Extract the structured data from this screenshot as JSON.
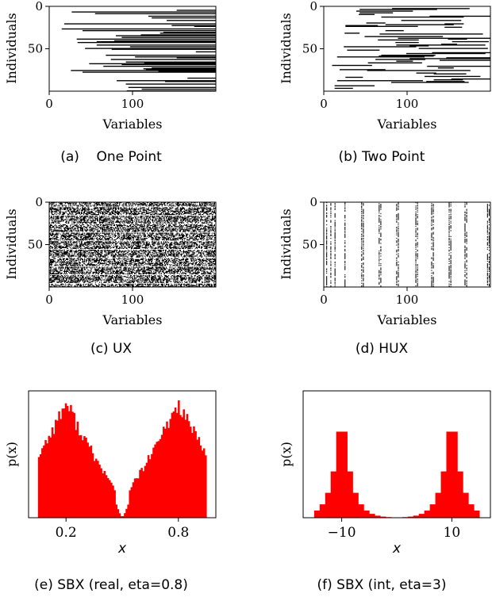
{
  "colors": {
    "ink": "#000000",
    "background": "#ffffff",
    "histogram": "#ff0000"
  },
  "chart_data": [
    {
      "id": "a",
      "type": "heatmap",
      "caption": "(a)    One Point",
      "xlabel": "Variables",
      "ylabel": "Individuals",
      "xlim": [
        0,
        200
      ],
      "ylim": [
        0,
        100
      ],
      "y_inverted": true,
      "xticks": [
        0,
        100
      ],
      "yticks": [
        0,
        50
      ],
      "xtick_labels": [
        "0",
        "100"
      ],
      "ytick_labels": [
        "0",
        "50"
      ],
      "pattern": "one-point",
      "grid": false
    },
    {
      "id": "b",
      "type": "heatmap",
      "caption": "(b) Two Point",
      "xlabel": "Variables",
      "ylabel": "Individuals",
      "xlim": [
        0,
        200
      ],
      "ylim": [
        0,
        100
      ],
      "y_inverted": true,
      "xticks": [
        0,
        100
      ],
      "yticks": [
        0,
        50
      ],
      "xtick_labels": [
        "0",
        "100"
      ],
      "ytick_labels": [
        "0",
        "50"
      ],
      "pattern": "two-point",
      "grid": false
    },
    {
      "id": "c",
      "type": "heatmap",
      "caption": "(c) UX",
      "xlabel": "Variables",
      "ylabel": "Individuals",
      "xlim": [
        0,
        200
      ],
      "ylim": [
        0,
        100
      ],
      "y_inverted": true,
      "xticks": [
        0,
        100
      ],
      "yticks": [
        0,
        50
      ],
      "xtick_labels": [
        "0",
        "100"
      ],
      "ytick_labels": [
        "0",
        "50"
      ],
      "pattern": "uniform",
      "grid": false
    },
    {
      "id": "d",
      "type": "heatmap",
      "caption": "(d) HUX",
      "xlabel": "Variables",
      "ylabel": "Individuals",
      "xlim": [
        0,
        200
      ],
      "ylim": [
        0,
        100
      ],
      "y_inverted": true,
      "xticks": [
        0,
        100
      ],
      "yticks": [
        0,
        50
      ],
      "xtick_labels": [
        "0",
        "100"
      ],
      "ytick_labels": [
        "0",
        "50"
      ],
      "pattern": "half-uniform",
      "hux_columns": [
        3,
        8,
        13,
        25,
        45,
        47,
        66,
        68,
        87,
        89,
        110,
        112,
        129,
        131,
        150,
        152,
        169,
        171,
        196,
        198
      ],
      "grid": false
    },
    {
      "id": "e",
      "type": "bar",
      "caption": "(e) SBX (real, eta=0.8)",
      "xlabel": "x",
      "ylabel": "p(x)",
      "xlim": [
        0.0,
        1.0
      ],
      "xticks": [
        0.2,
        0.8
      ],
      "xtick_labels": [
        "0.2",
        "0.8"
      ],
      "yticks_visible": false,
      "bins": 100,
      "range": [
        0.05,
        0.95
      ],
      "peaks": [
        0.2,
        0.8
      ],
      "floor": 0.15,
      "grid": false
    },
    {
      "id": "f",
      "type": "bar",
      "caption": "(f) SBX (int, eta=3)",
      "xlabel": "x",
      "ylabel": "p(x)",
      "xlim": [
        -17,
        17
      ],
      "xticks": [
        -10,
        10
      ],
      "xtick_labels": [
        "−10",
        "10"
      ],
      "yticks_visible": false,
      "bin_edges": [
        -15,
        -14,
        -13,
        -12,
        -11,
        -10,
        -9,
        -8,
        -7,
        -6,
        -5,
        -4,
        -3,
        -2,
        -1,
        0,
        1,
        2,
        3,
        4,
        5,
        6,
        7,
        8,
        9,
        10,
        11,
        12,
        13,
        14,
        15
      ],
      "peaks": [
        -10,
        10
      ],
      "grid": false
    }
  ]
}
